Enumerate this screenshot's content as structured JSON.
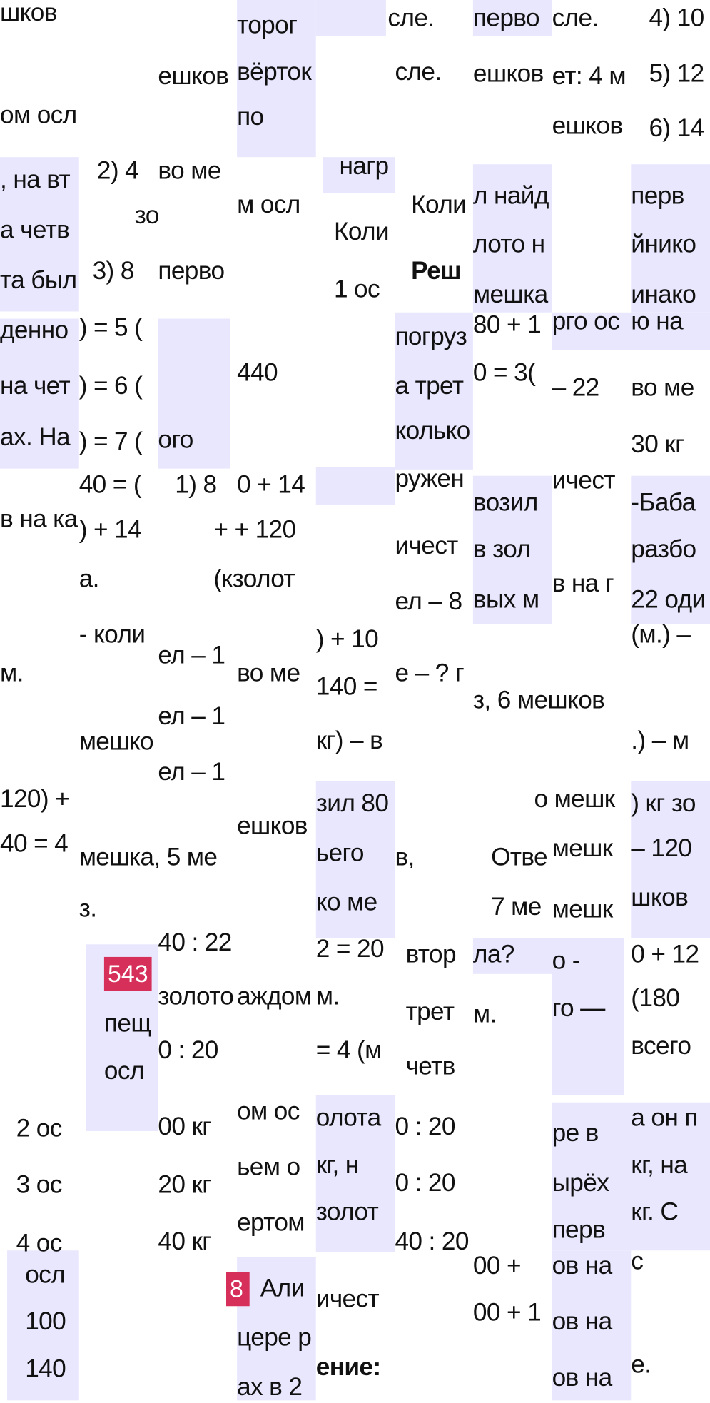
{
  "colors": {
    "highlight": "#e9e7fd",
    "badge": "#d6305a",
    "text": "#111111"
  },
  "badges": {
    "task_543": "543",
    "task_8": "8"
  },
  "fragments": [
    "шков",
    "ом осл",
    ", на вт",
    "а четв",
    "та был",
    "денно",
    "на чет",
    "ах. На",
    "в на ка",
    "м.",
    "120) +",
    "40 = 4",
    "2 ос",
    "3 ос",
    "4 ос",
    "осл",
    "100",
    "140",
    "2) 4",
    "зо",
    "3) 8",
    ") = 5 (",
    ") = 6 (",
    ") = 7 (",
    "40 = (",
    ") + 14",
    "а.",
    "- коли",
    "мешко",
    "мешка, 5 ме",
    "з.",
    "пещ",
    "осл",
    "ешков",
    "во ме",
    "перво",
    "ого",
    "1) 8",
    "+ + 120",
    "(кзолот",
    "ел – 1",
    "ел – 1",
    "ел – 1",
    "ешков",
    "40 : 22",
    "золото",
    "0 : 20",
    "00 кг",
    "20 кг",
    "40 кг",
    "торог",
    "вёрток",
    "по",
    "м осл",
    "440",
    "0 + 14",
    "во ме",
    "аждом",
    "ом ос",
    "ьем о",
    "ертом",
    "Али",
    "цере р",
    "ах в 2",
    "сле.",
    "сле.",
    "нагр",
    "Коли",
    "1 ос",
    ") + 10",
    "140 =",
    "кг) – в",
    "зил 80",
    "ьего",
    "ко ме",
    "2 = 20",
    "м.",
    "= 4 (м",
    "олота",
    "кг, н",
    "золот",
    "ичест",
    "ение:",
    "Коли",
    "Реш",
    "погруз",
    "а трет",
    "колько",
    "ружен",
    "ичест",
    "ел – 8",
    "е – ? г",
    "в,",
    "втор",
    "трет",
    "четв",
    "0 : 20",
    "0 : 20",
    "40 : 20",
    "перво",
    "ешков",
    "л найд",
    "лото н",
    "мешка",
    "80 + 1",
    "0 = 3(",
    "возил",
    "в зол",
    "вых м",
    "з, 6 мешков",
    "Отве",
    "7 ме",
    "ла?",
    "м.",
    "00 +",
    "00 + 1",
    "сле.",
    "ет: 4 м",
    "ешков",
    "рго ос",
    "– 22",
    "ичест",
    "в на г",
    "о мешк",
    "мешк",
    "мешк",
    "о -",
    "го —",
    "ре в",
    "ырёх",
    "перв",
    "ов на",
    "ов на",
    "ов на",
    "4) 10",
    "5) 12",
    "6) 14",
    "перв",
    "йнико",
    "инако",
    "ю на",
    "во ме",
    "30 кг",
    "-Баба",
    "разбо",
    "22 оди",
    "(м.) –",
    ".) – м",
    ") кг зо",
    "– 120",
    "шков",
    "0 + 12",
    "(180",
    "всего",
    "а он п",
    "кг, на",
    "кг. С",
    "с",
    "е."
  ]
}
